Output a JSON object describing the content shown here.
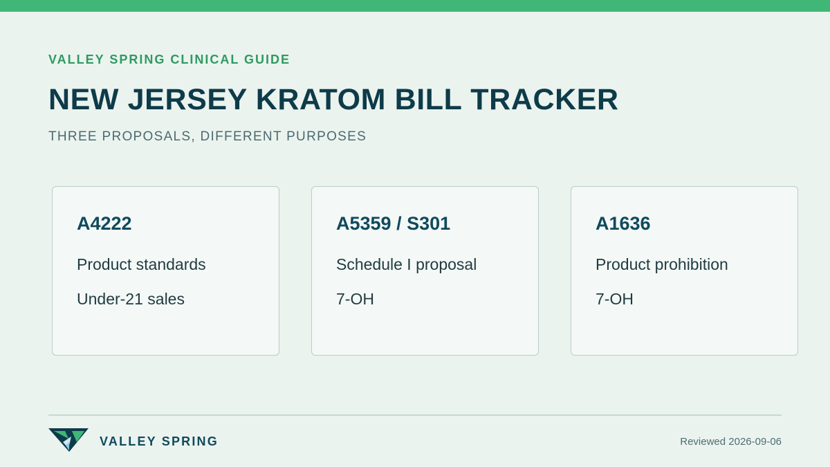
{
  "header": {
    "eyebrow": "VALLEY SPRING CLINICAL GUIDE",
    "title": "NEW JERSEY KRATOM BILL TRACKER",
    "subtitle": "THREE PROPOSALS, DIFFERENT PURPOSES"
  },
  "cards": [
    {
      "title": "A4222",
      "lines": [
        "Product standards",
        "Under-21 sales"
      ]
    },
    {
      "title": "A5359 / S301",
      "lines": [
        "Schedule I proposal",
        "7-OH"
      ]
    },
    {
      "title": "A1636",
      "lines": [
        "Product prohibition",
        "7-OH"
      ]
    }
  ],
  "footer": {
    "brand": "VALLEY SPRING",
    "logo_icon": "valley-spring-v-logo-icon",
    "reviewed": "Reviewed 2026-09-06"
  },
  "colors": {
    "accent_green": "#40b776",
    "eyebrow_green": "#2f9a61",
    "title_navy": "#0e3b49",
    "background": "#ebf3ef",
    "card_background": "#f4f8f6",
    "card_border": "#b9cdc6"
  }
}
